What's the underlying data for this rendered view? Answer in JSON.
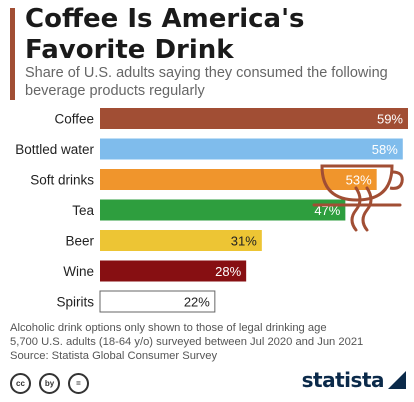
{
  "header": {
    "title": "Coffee Is America's Favorite Drink",
    "subtitle": "Share of U.S. adults saying they consumed the following beverage products regularly"
  },
  "chart_data": {
    "type": "bar",
    "orientation": "horizontal",
    "categories": [
      "Coffee",
      "Bottled water",
      "Soft drinks",
      "Tea",
      "Beer",
      "Wine",
      "Spirits"
    ],
    "values": [
      59,
      58,
      53,
      47,
      31,
      28,
      22
    ],
    "value_labels": [
      "59%",
      "58%",
      "53%",
      "47%",
      "31%",
      "28%",
      "22%"
    ],
    "unit": "%",
    "xlim": [
      0,
      59
    ],
    "colors": [
      "#a14e34",
      "#7fbcec",
      "#f0952c",
      "#2e9e3e",
      "#edc534",
      "#870f12",
      "#ffffff"
    ],
    "bar_border_color": "#666666",
    "grid": false,
    "legend": "none"
  },
  "illustration": {
    "icon": "coffee-cup",
    "color": "#a14e34"
  },
  "footnote": {
    "note": "Alcoholic drink options only shown to those of legal drinking age",
    "sample": "5,700 U.S. adults (18-64 y/o) surveyed between Jul 2020 and Jun 2021",
    "source": "Source: Statista Global Consumer Survey"
  },
  "footer": {
    "license_icons": [
      "cc",
      "by",
      "="
    ],
    "brand": "statista"
  }
}
